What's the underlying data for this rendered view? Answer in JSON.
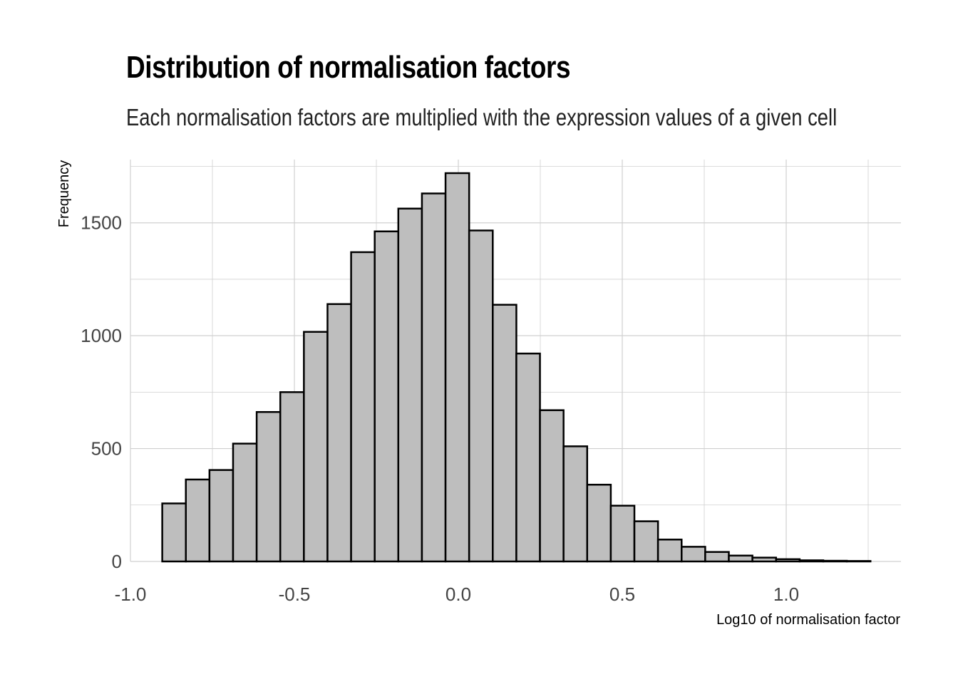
{
  "chart_data": {
    "type": "bar",
    "title": "Distribution of normalisation factors",
    "subtitle": "Each normalisation factors are multiplied with the expression values of a given cell",
    "xlabel": "Log10 of normalisation factor",
    "ylabel": "Frequency",
    "xlim": [
      -1.0,
      1.35
    ],
    "ylim": [
      0,
      1780
    ],
    "x_ticks": [
      -1.0,
      -0.5,
      0.0,
      0.5,
      1.0
    ],
    "x_tick_labels": [
      "-1.0",
      "-0.5",
      "0.0",
      "0.5",
      "1.0"
    ],
    "y_ticks": [
      0,
      500,
      1000,
      1500
    ],
    "y_tick_labels": [
      "0",
      "500",
      "1000",
      "1500"
    ],
    "grid": true,
    "bin_width": 0.072,
    "bin_starts": [
      -0.903,
      -0.831,
      -0.759,
      -0.687,
      -0.615,
      -0.543,
      -0.471,
      -0.399,
      -0.327,
      -0.255,
      -0.183,
      -0.111,
      -0.039,
      0.033,
      0.105,
      0.177,
      0.249,
      0.321,
      0.393,
      0.465,
      0.537,
      0.609,
      0.681,
      0.753,
      0.825,
      0.897,
      0.969,
      1.041,
      1.113,
      1.185
    ],
    "values": [
      257,
      363,
      405,
      522,
      662,
      750,
      1017,
      1140,
      1370,
      1462,
      1563,
      1630,
      1720,
      1466,
      1137,
      921,
      670,
      510,
      340,
      247,
      178,
      97,
      65,
      42,
      26,
      17,
      10,
      5,
      3,
      2
    ],
    "colors": {
      "bar_fill": "#bebebe",
      "bar_stroke": "#000000",
      "grid": "#d0d0d0"
    }
  }
}
